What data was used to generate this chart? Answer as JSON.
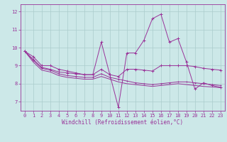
{
  "xlabel": "Windchill (Refroidissement éolien,°C)",
  "bg_color": "#cce8e8",
  "grid_color": "#aacccc",
  "line_color": "#993399",
  "spine_color": "#993399",
  "xlim": [
    -0.5,
    23.5
  ],
  "ylim": [
    6.5,
    12.4
  ],
  "xticks": [
    0,
    1,
    2,
    3,
    4,
    5,
    6,
    7,
    8,
    9,
    10,
    11,
    12,
    13,
    14,
    15,
    16,
    17,
    18,
    19,
    20,
    21,
    22,
    23
  ],
  "yticks": [
    7,
    8,
    9,
    10,
    11,
    12
  ],
  "series1_x": [
    0,
    1,
    2,
    3,
    4,
    5,
    6,
    7,
    8,
    9,
    10,
    11,
    12,
    13,
    14,
    15,
    16,
    17,
    18,
    19,
    20,
    21,
    22,
    23
  ],
  "series1_y": [
    9.8,
    9.5,
    9.0,
    9.0,
    8.8,
    8.7,
    8.6,
    8.5,
    8.5,
    10.3,
    8.5,
    6.7,
    9.7,
    9.7,
    10.4,
    11.6,
    11.85,
    10.3,
    10.5,
    9.2,
    7.7,
    8.05,
    7.9,
    7.8
  ],
  "series2_x": [
    0,
    1,
    2,
    3,
    4,
    5,
    6,
    7,
    8,
    9,
    10,
    11,
    12,
    13,
    14,
    15,
    16,
    17,
    18,
    19,
    20,
    21,
    22,
    23
  ],
  "series2_y": [
    9.8,
    9.35,
    8.9,
    8.8,
    8.65,
    8.6,
    8.55,
    8.5,
    8.5,
    8.8,
    8.5,
    8.4,
    8.8,
    8.8,
    8.75,
    8.7,
    9.0,
    9.0,
    9.0,
    9.0,
    8.95,
    8.85,
    8.8,
    8.75
  ],
  "series3_x": [
    0,
    1,
    2,
    3,
    4,
    5,
    6,
    7,
    8,
    9,
    10,
    11,
    12,
    13,
    14,
    15,
    16,
    17,
    18,
    19,
    20,
    21,
    22,
    23
  ],
  "series3_y": [
    9.8,
    9.3,
    8.85,
    8.75,
    8.55,
    8.45,
    8.4,
    8.35,
    8.35,
    8.55,
    8.35,
    8.25,
    8.15,
    8.05,
    8.0,
    7.95,
    8.0,
    8.05,
    8.1,
    8.1,
    8.05,
    8.0,
    7.95,
    7.9
  ],
  "series4_x": [
    0,
    1,
    2,
    3,
    4,
    5,
    6,
    7,
    8,
    9,
    10,
    11,
    12,
    13,
    14,
    15,
    16,
    17,
    18,
    19,
    20,
    21,
    22,
    23
  ],
  "series4_y": [
    9.8,
    9.2,
    8.75,
    8.65,
    8.45,
    8.35,
    8.3,
    8.25,
    8.25,
    8.4,
    8.25,
    8.1,
    8.0,
    7.95,
    7.9,
    7.85,
    7.9,
    7.95,
    8.0,
    7.95,
    7.9,
    7.85,
    7.82,
    7.78
  ],
  "tick_fontsize": 5,
  "xlabel_fontsize": 5.5
}
